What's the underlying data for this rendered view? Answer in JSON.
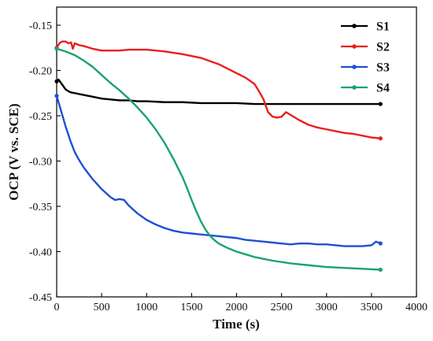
{
  "chart_data": {
    "type": "line",
    "xlabel": "Time (s)",
    "ylabel": "OCP (V vs. SCE)",
    "xlim": [
      0,
      4000
    ],
    "ylim": [
      -0.45,
      -0.13
    ],
    "xticks": [
      "0",
      "500",
      "1000",
      "1500",
      "2000",
      "2500",
      "3000",
      "3500",
      "4000"
    ],
    "yticks": [
      "-0.15",
      "-0.20",
      "-0.25",
      "-0.30",
      "-0.35",
      "-0.40",
      "-0.45"
    ],
    "legend_position": "top-right",
    "grid": false,
    "series": [
      {
        "name": "S1",
        "color": "#000000",
        "x": [
          0,
          20,
          50,
          100,
          150,
          200,
          300,
          400,
          500,
          600,
          700,
          800,
          900,
          1000,
          1200,
          1400,
          1600,
          1800,
          2000,
          2200,
          2400,
          2600,
          2800,
          3000,
          3200,
          3400,
          3600
        ],
        "y": [
          -0.212,
          -0.21,
          -0.214,
          -0.221,
          -0.224,
          -0.225,
          -0.227,
          -0.229,
          -0.231,
          -0.232,
          -0.233,
          -0.233,
          -0.234,
          -0.234,
          -0.235,
          -0.235,
          -0.236,
          -0.236,
          -0.236,
          -0.237,
          -0.237,
          -0.237,
          -0.237,
          -0.237,
          -0.237,
          -0.237,
          -0.237
        ]
      },
      {
        "name": "S2",
        "color": "#e8201f",
        "x": [
          0,
          30,
          60,
          100,
          130,
          160,
          180,
          200,
          250,
          300,
          400,
          500,
          600,
          700,
          800,
          900,
          1000,
          1200,
          1400,
          1600,
          1800,
          1900,
          2000,
          2100,
          2200,
          2250,
          2300,
          2350,
          2400,
          2450,
          2500,
          2550,
          2600,
          2700,
          2800,
          2900,
          3000,
          3100,
          3200,
          3300,
          3400,
          3500,
          3600
        ],
        "y": [
          -0.175,
          -0.17,
          -0.168,
          -0.168,
          -0.17,
          -0.169,
          -0.176,
          -0.17,
          -0.172,
          -0.173,
          -0.176,
          -0.178,
          -0.178,
          -0.178,
          -0.177,
          -0.177,
          -0.177,
          -0.179,
          -0.182,
          -0.186,
          -0.193,
          -0.198,
          -0.203,
          -0.208,
          -0.215,
          -0.223,
          -0.232,
          -0.246,
          -0.251,
          -0.252,
          -0.251,
          -0.246,
          -0.249,
          -0.255,
          -0.26,
          -0.263,
          -0.265,
          -0.267,
          -0.269,
          -0.27,
          -0.272,
          -0.274,
          -0.275
        ]
      },
      {
        "name": "S3",
        "color": "#1f4fd6",
        "x": [
          0,
          50,
          100,
          150,
          200,
          250,
          300,
          400,
          500,
          600,
          650,
          700,
          750,
          800,
          900,
          1000,
          1100,
          1200,
          1300,
          1400,
          1500,
          1600,
          1800,
          2000,
          2100,
          2200,
          2300,
          2400,
          2500,
          2600,
          2700,
          2800,
          2900,
          3000,
          3100,
          3200,
          3300,
          3400,
          3500,
          3550,
          3600
        ],
        "y": [
          -0.228,
          -0.245,
          -0.262,
          -0.277,
          -0.29,
          -0.299,
          -0.307,
          -0.32,
          -0.331,
          -0.34,
          -0.343,
          -0.342,
          -0.343,
          -0.349,
          -0.358,
          -0.365,
          -0.37,
          -0.374,
          -0.377,
          -0.379,
          -0.38,
          -0.381,
          -0.383,
          -0.385,
          -0.387,
          -0.388,
          -0.389,
          -0.39,
          -0.391,
          -0.392,
          -0.391,
          -0.391,
          -0.392,
          -0.392,
          -0.393,
          -0.394,
          -0.394,
          -0.394,
          -0.393,
          -0.389,
          -0.391
        ]
      },
      {
        "name": "S4",
        "color": "#1aa36b",
        "x": [
          0,
          100,
          200,
          300,
          400,
          500,
          600,
          700,
          800,
          900,
          1000,
          1100,
          1200,
          1300,
          1400,
          1450,
          1500,
          1550,
          1600,
          1650,
          1700,
          1750,
          1800,
          1900,
          2000,
          2100,
          2200,
          2400,
          2600,
          2800,
          3000,
          3200,
          3400,
          3600
        ],
        "y": [
          -0.176,
          -0.179,
          -0.183,
          -0.189,
          -0.196,
          -0.205,
          -0.214,
          -0.222,
          -0.231,
          -0.241,
          -0.252,
          -0.265,
          -0.28,
          -0.298,
          -0.318,
          -0.33,
          -0.343,
          -0.355,
          -0.366,
          -0.375,
          -0.382,
          -0.387,
          -0.391,
          -0.396,
          -0.4,
          -0.403,
          -0.406,
          -0.41,
          -0.413,
          -0.415,
          -0.417,
          -0.418,
          -0.419,
          -0.42
        ]
      }
    ]
  }
}
